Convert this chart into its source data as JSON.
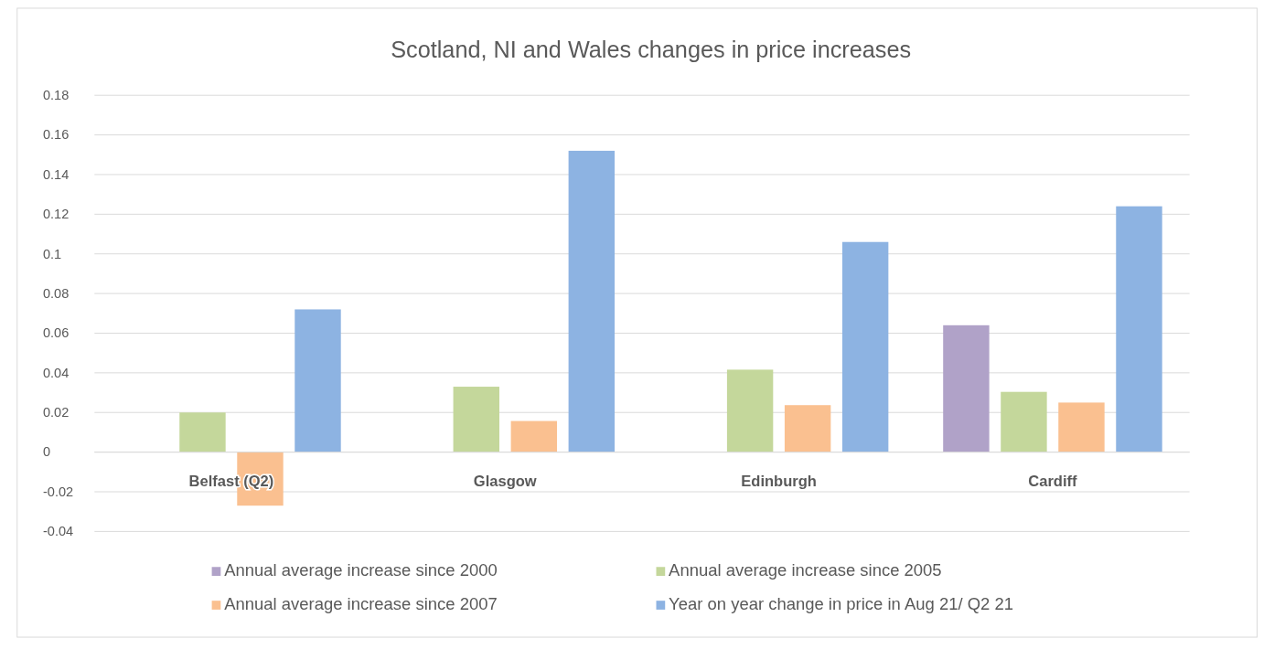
{
  "chart_data": {
    "type": "bar",
    "title": "Scotland, NI and Wales changes in price increases",
    "categories": [
      "Belfast (Q2)",
      "Glasgow",
      "Edinburgh",
      "Cardiff"
    ],
    "series": [
      {
        "name": "Annual average increase since 2000",
        "color": "#b0a2c8",
        "values": [
          null,
          null,
          null,
          0.064
        ]
      },
      {
        "name": "Annual average increase since 2005",
        "color": "#c4d79b",
        "values": [
          0.02,
          0.033,
          0.0416,
          0.0304
        ]
      },
      {
        "name": "Annual average increase since 2007",
        "color": "#fac090",
        "values": [
          -0.027,
          0.0157,
          0.0237,
          0.025
        ]
      },
      {
        "name": "Year on year change in price in Aug 21/ Q2 21",
        "color": "#8db3e2",
        "values": [
          0.072,
          0.152,
          0.106,
          0.124
        ]
      }
    ],
    "ylim": [
      -0.04,
      0.18
    ],
    "yticks": [
      -0.04,
      -0.02,
      0,
      0.02,
      0.04,
      0.06,
      0.08,
      0.1,
      0.12,
      0.14,
      0.16,
      0.18
    ],
    "grid": "y",
    "legend": "bottom"
  }
}
